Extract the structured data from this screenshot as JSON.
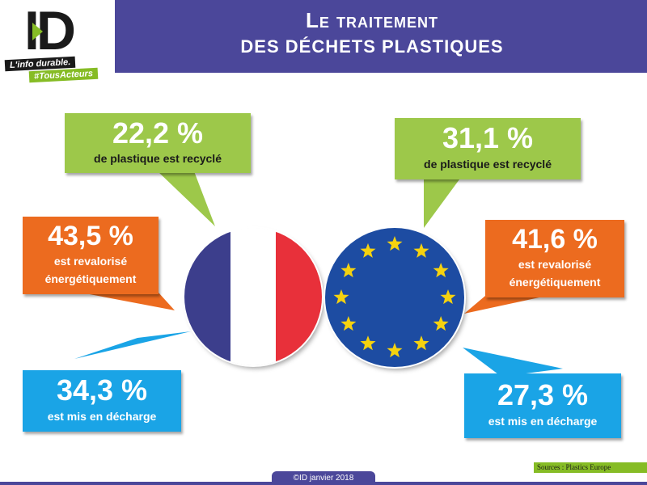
{
  "logo": {
    "mark": "ID",
    "tagline": "L'info durable.",
    "hashtag": "#TousActeurs"
  },
  "title": {
    "line1": "Le traitement",
    "line2": "des déchets plastiques"
  },
  "colors": {
    "header": "#4b479a",
    "recycled": "#9dc84a",
    "energy": "#ec6b1f",
    "landfill": "#1aa4e6",
    "brand_green": "#86bc25"
  },
  "france": {
    "flag_icon": "france-flag",
    "recycled": {
      "value": "22,2 %",
      "label": "de plastique est recyclé"
    },
    "energy": {
      "value": "43,5 %",
      "label_1": "est revalorisé",
      "label_2": "énergétiquement"
    },
    "landfill": {
      "value": "34,3 %",
      "label": "est mis en décharge"
    }
  },
  "europe": {
    "flag_icon": "eu-flag",
    "recycled": {
      "value": "31,1 %",
      "label": "de plastique est recyclé"
    },
    "energy": {
      "value": "41,6 %",
      "label_1": "est revalorisé",
      "label_2": "énergétiquement"
    },
    "landfill": {
      "value": "27,3 %",
      "label": "est mis en décharge"
    }
  },
  "footer": {
    "credit": "©ID janvier 2018",
    "sources": "Sources : Plastics Europe"
  }
}
